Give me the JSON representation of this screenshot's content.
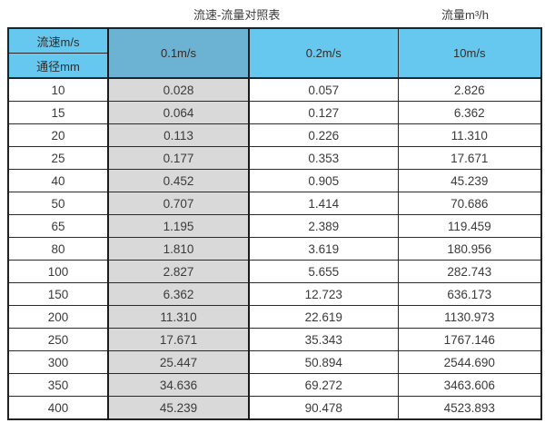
{
  "caption": {
    "title": "流速-流量对照表",
    "unit_label": "流量m³/h"
  },
  "chart_data": {
    "type": "table",
    "title": "流速-流量对照表",
    "unit_label": "流量m³/h",
    "corner": {
      "velocity_label": "流速m/s",
      "diameter_label": "通径mm"
    },
    "columns": [
      "0.1m/s",
      "0.2m/s",
      "10m/s"
    ],
    "rows": [
      {
        "diameter": "10",
        "values": [
          "0.028",
          "0.057",
          "2.826"
        ]
      },
      {
        "diameter": "15",
        "values": [
          "0.064",
          "0.127",
          "6.362"
        ]
      },
      {
        "diameter": "20",
        "values": [
          "0.113",
          "0.226",
          "11.310"
        ]
      },
      {
        "diameter": "25",
        "values": [
          "0.177",
          "0.353",
          "17.671"
        ]
      },
      {
        "diameter": "40",
        "values": [
          "0.452",
          "0.905",
          "45.239"
        ]
      },
      {
        "diameter": "50",
        "values": [
          "0.707",
          "1.414",
          "70.686"
        ]
      },
      {
        "diameter": "65",
        "values": [
          "1.195",
          "2.389",
          "119.459"
        ]
      },
      {
        "diameter": "80",
        "values": [
          "1.810",
          "3.619",
          "180.956"
        ]
      },
      {
        "diameter": "100",
        "values": [
          "2.827",
          "5.655",
          "282.743"
        ]
      },
      {
        "diameter": "150",
        "values": [
          "6.362",
          "12.723",
          "636.173"
        ]
      },
      {
        "diameter": "200",
        "values": [
          "11.310",
          "22.619",
          "1130.973"
        ]
      },
      {
        "diameter": "250",
        "values": [
          "17.671",
          "35.343",
          "1767.146"
        ]
      },
      {
        "diameter": "300",
        "values": [
          "25.447",
          "50.894",
          "2544.690"
        ]
      },
      {
        "diameter": "350",
        "values": [
          "34.636",
          "69.272",
          "3463.606"
        ]
      },
      {
        "diameter": "400",
        "values": [
          "45.239",
          "90.478",
          "4523.893"
        ]
      }
    ],
    "layout": {
      "highlighted_column": "0.1m/s",
      "grid": true
    }
  },
  "colors": {
    "header_blue": "#66c8ee",
    "header_blue_highlight": "#6cb2d2",
    "highlight_column_grey": "#d9d9d9",
    "border": "#222222",
    "text": "#3a3a3a",
    "background": "#ffffff"
  }
}
